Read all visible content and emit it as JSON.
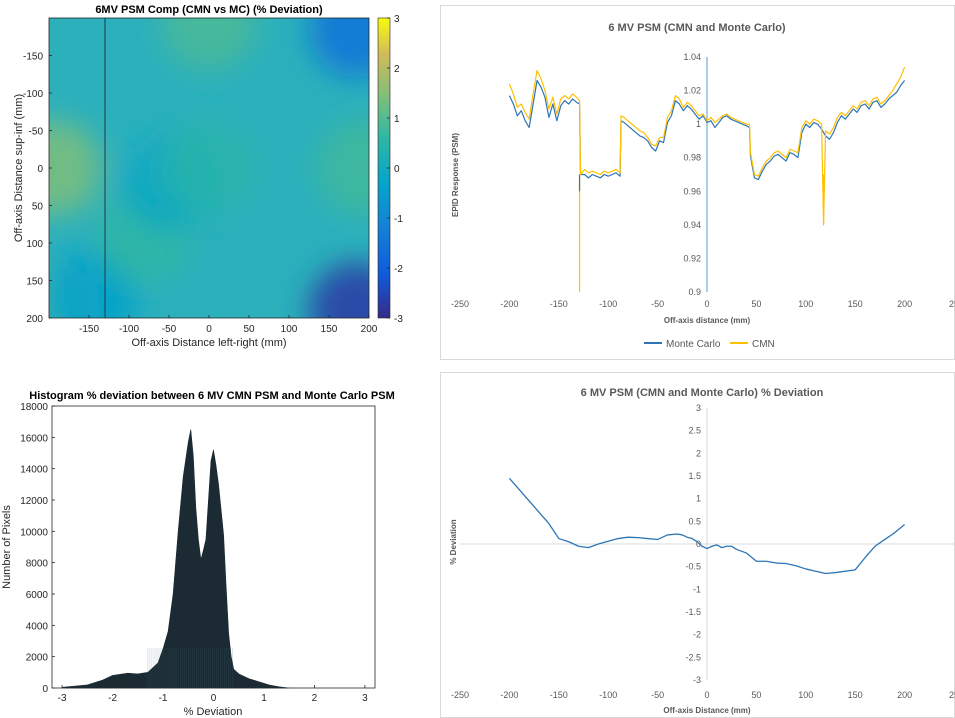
{
  "chart_data": [
    {
      "type": "heatmap",
      "title": "6MV PSM Comp (CMN vs MC) (% Deviation)",
      "xlabel": "Off-axis Distance left-right (mm)",
      "ylabel": "Off-axis Distance sup-inf (mm)",
      "xlim": [
        -200,
        200
      ],
      "ylim": [
        -200,
        200
      ],
      "x_ticks": [
        "-150",
        "-100",
        "-50",
        "0",
        "50",
        "100",
        "150",
        "200"
      ],
      "y_ticks": [
        "-150",
        "-100",
        "-50",
        "0",
        "50",
        "100",
        "150",
        "200"
      ],
      "colorbar": {
        "min": -3,
        "max": 3,
        "ticks": [
          "3",
          "2",
          "1",
          "0",
          "-1",
          "-2",
          "-3"
        ]
      },
      "hotspots": [
        {
          "x": -195,
          "y": 0,
          "value": 1.2
        },
        {
          "x": 195,
          "y": 0,
          "value": 0.6
        },
        {
          "x": 0,
          "y": -195,
          "value": 0.7
        },
        {
          "x": -195,
          "y": 195,
          "value": 0.6
        },
        {
          "x": -150,
          "y": 175,
          "value": -0.5
        },
        {
          "x": -80,
          "y": 90,
          "value": 0.4
        },
        {
          "x": 185,
          "y": -185,
          "value": -1.6
        },
        {
          "x": 185,
          "y": 190,
          "value": -2.7
        },
        {
          "x": -50,
          "y": 20,
          "value": -0.3
        },
        {
          "x": 0,
          "y": 0,
          "value": 0.3
        }
      ],
      "vertical_line_x": -130
    },
    {
      "type": "line",
      "title": "6 MV PSM (CMN and Monte Carlo)",
      "xlabel": "Off-axis distance (mm)",
      "ylabel": "EPID Response (PSM)",
      "xlim": [
        -250,
        250
      ],
      "ylim": [
        0.9,
        1.04
      ],
      "x_ticks": [
        "-250",
        "-200",
        "-150",
        "-100",
        "-50",
        "0",
        "50",
        "100",
        "150",
        "200",
        "25"
      ],
      "y_ticks": [
        "0.9",
        "0.92",
        "0.94",
        "0.96",
        "0.98",
        "1",
        "1.02",
        "1.04"
      ],
      "legend_position": "bottom",
      "series": [
        {
          "name": "Monte Carlo",
          "color": "#2e75b6",
          "x": [
            -200,
            -196,
            -192,
            -188,
            -184,
            -180,
            -176,
            -172,
            -168,
            -164,
            -160,
            -156,
            -152,
            -148,
            -144,
            -140,
            -136,
            -132,
            -129,
            -128,
            -124,
            -120,
            -116,
            -112,
            -108,
            -104,
            -100,
            -96,
            -92,
            -88,
            -87,
            -84,
            -80,
            -76,
            -72,
            -68,
            -64,
            -60,
            -56,
            -52,
            -48,
            -44,
            -40,
            -36,
            -32,
            -28,
            -24,
            -20,
            -16,
            -12,
            -8,
            -4,
            0,
            4,
            8,
            12,
            16,
            20,
            24,
            28,
            32,
            36,
            40,
            43,
            44,
            48,
            52,
            56,
            60,
            64,
            68,
            72,
            76,
            80,
            84,
            88,
            92,
            96,
            100,
            104,
            108,
            112,
            116,
            120,
            124,
            128,
            132,
            136,
            140,
            144,
            148,
            152,
            156,
            160,
            164,
            168,
            172,
            176,
            180,
            184,
            188,
            192,
            196,
            200
          ],
          "values": [
            1.017,
            1.012,
            1.005,
            1.008,
            1.002,
            0.998,
            1.012,
            1.026,
            1.022,
            1.016,
            1.004,
            1.012,
            1.002,
            1.011,
            1.014,
            1.012,
            1.015,
            1.013,
            1.012,
            0.97,
            0.97,
            0.968,
            0.97,
            0.969,
            0.968,
            0.97,
            0.969,
            0.97,
            0.971,
            0.969,
            1.002,
            1.001,
            0.999,
            0.997,
            0.995,
            0.993,
            0.992,
            0.99,
            0.986,
            0.984,
            0.99,
            0.989,
            1.001,
            1.005,
            1.014,
            1.012,
            1.008,
            1.011,
            1.009,
            1.006,
            1.003,
            1.005,
            1.001,
            1.002,
            0.998,
            1.001,
            1.004,
            1.005,
            1.003,
            1.002,
            1.001,
            1.0,
            0.999,
            0.998,
            0.981,
            0.968,
            0.967,
            0.972,
            0.976,
            0.978,
            0.981,
            0.982,
            0.98,
            0.978,
            0.983,
            0.982,
            0.98,
            0.995,
            1.0,
            0.998,
            1.001,
            1.0,
            0.997,
            0.993,
            0.991,
            0.995,
            1.001,
            1.005,
            1.003,
            1.006,
            1.009,
            1.007,
            1.011,
            1.012,
            1.009,
            1.013,
            1.014,
            1.01,
            1.012,
            1.015,
            1.017,
            1.019,
            1.023,
            1.026
          ]
        },
        {
          "name": "CMN",
          "color": "#ffc000",
          "x": [
            -200,
            -196,
            -192,
            -188,
            -184,
            -180,
            -176,
            -172,
            -168,
            -164,
            -160,
            -156,
            -152,
            -148,
            -144,
            -140,
            -136,
            -132,
            -129,
            -128,
            -124,
            -120,
            -116,
            -112,
            -108,
            -104,
            -100,
            -96,
            -92,
            -88,
            -87,
            -84,
            -80,
            -76,
            -72,
            -68,
            -64,
            -60,
            -56,
            -52,
            -48,
            -44,
            -40,
            -36,
            -32,
            -28,
            -24,
            -20,
            -16,
            -12,
            -8,
            -4,
            0,
            4,
            8,
            12,
            16,
            20,
            24,
            28,
            32,
            36,
            40,
            43,
            44,
            48,
            52,
            56,
            60,
            64,
            68,
            72,
            76,
            80,
            84,
            88,
            92,
            96,
            100,
            104,
            108,
            112,
            116,
            118,
            120,
            124,
            128,
            132,
            136,
            140,
            144,
            148,
            152,
            156,
            160,
            164,
            168,
            172,
            176,
            180,
            184,
            188,
            192,
            196,
            200
          ],
          "values": [
            1.024,
            1.018,
            1.01,
            1.012,
            1.007,
            1.003,
            1.018,
            1.032,
            1.027,
            1.02,
            1.009,
            1.016,
            1.006,
            1.015,
            1.017,
            1.015,
            1.018,
            1.016,
            1.014,
            0.97,
            0.973,
            0.971,
            0.972,
            0.971,
            0.97,
            0.972,
            0.971,
            0.972,
            0.973,
            0.971,
            1.005,
            1.004,
            1.002,
            1.0,
            0.998,
            0.996,
            0.995,
            0.992,
            0.988,
            0.987,
            0.992,
            0.992,
            1.004,
            1.008,
            1.017,
            1.015,
            1.01,
            1.013,
            1.011,
            1.008,
            1.005,
            1.006,
            1.002,
            1.004,
            1.001,
            1.003,
            1.005,
            1.006,
            1.004,
            1.003,
            1.002,
            1.001,
            1.0,
            1.0,
            0.983,
            0.97,
            0.969,
            0.974,
            0.978,
            0.98,
            0.983,
            0.984,
            0.982,
            0.98,
            0.985,
            0.984,
            0.983,
            0.998,
            1.002,
            1.0,
            1.003,
            1.002,
            1.0,
            0.94,
            0.996,
            0.994,
            0.998,
            1.004,
            1.007,
            1.005,
            1.008,
            1.011,
            1.009,
            1.013,
            1.014,
            1.011,
            1.015,
            1.016,
            1.012,
            1.014,
            1.017,
            1.02,
            1.024,
            1.028,
            1.034
          ]
        }
      ],
      "spikes": [
        {
          "series": "CMN",
          "x": -129,
          "min": 0.9
        },
        {
          "series": "Monte Carlo",
          "x": -129,
          "min": 0.96
        },
        {
          "series": "CMN",
          "x": 118,
          "min": 0.94
        }
      ]
    },
    {
      "type": "bar",
      "title": "Histogram % deviation between 6 MV CMN PSM and Monte Carlo PSM",
      "xlabel": "% Deviation",
      "ylabel": "Number of Pixels",
      "xlim": [
        -3.2,
        3.2
      ],
      "ylim": [
        0,
        18000
      ],
      "x_ticks": [
        "-3",
        "-2",
        "-1",
        "0",
        "1",
        "2",
        "3"
      ],
      "y_ticks": [
        "0",
        "2000",
        "4000",
        "6000",
        "8000",
        "10000",
        "12000",
        "14000",
        "16000",
        "18000"
      ],
      "color": "#1c2b33",
      "profile": {
        "x": [
          -3.0,
          -2.5,
          -2.2,
          -2.0,
          -1.7,
          -1.5,
          -1.3,
          -1.1,
          -1.0,
          -0.9,
          -0.8,
          -0.7,
          -0.6,
          -0.5,
          -0.45,
          -0.4,
          -0.35,
          -0.3,
          -0.25,
          -0.2,
          -0.15,
          -0.1,
          -0.05,
          0.0,
          0.05,
          0.1,
          0.2,
          0.25,
          0.3,
          0.35,
          0.4,
          0.5,
          0.7,
          0.9,
          1.1,
          1.3,
          1.5
        ],
        "values": [
          50,
          200,
          500,
          800,
          950,
          900,
          1000,
          1600,
          2500,
          3600,
          6000,
          10000,
          13500,
          15700,
          16500,
          14800,
          11500,
          9500,
          8200,
          8800,
          9500,
          12000,
          14500,
          15200,
          14200,
          13000,
          9800,
          6500,
          3500,
          2000,
          1200,
          900,
          600,
          400,
          200,
          80,
          0
        ]
      }
    },
    {
      "type": "line",
      "title": "6 MV PSM (CMN and Monte Carlo) % Deviation",
      "xlabel": "Off-axis Distance (mm)",
      "ylabel": "% Deviation",
      "xlim": [
        -250,
        250
      ],
      "ylim": [
        -3,
        3
      ],
      "x_ticks": [
        "-250",
        "-200",
        "-150",
        "-100",
        "-50",
        "0",
        "50",
        "100",
        "150",
        "200",
        "25"
      ],
      "y_ticks": [
        "3",
        "2.5",
        "2",
        "1.5",
        "1",
        "0.5",
        "0",
        "-0.5",
        "-1",
        "-1.5",
        "-2",
        "-2.5",
        "-3"
      ],
      "series": [
        {
          "color": "#2e75b6",
          "x": [
            -200,
            -180,
            -160,
            -150,
            -140,
            -130,
            -120,
            -110,
            -100,
            -90,
            -80,
            -70,
            -60,
            -50,
            -40,
            -30,
            -25,
            -20,
            -15,
            -10,
            -5,
            0,
            5,
            10,
            15,
            20,
            25,
            30,
            40,
            50,
            60,
            70,
            80,
            90,
            100,
            110,
            120,
            130,
            150,
            160,
            170,
            180,
            190,
            200
          ],
          "values": [
            1.45,
            0.95,
            0.45,
            0.12,
            0.05,
            -0.05,
            -0.08,
            0.0,
            0.06,
            0.12,
            0.15,
            0.14,
            0.12,
            0.1,
            0.2,
            0.22,
            0.2,
            0.15,
            0.12,
            0.05,
            -0.05,
            -0.1,
            -0.05,
            -0.02,
            -0.08,
            -0.05,
            -0.05,
            -0.12,
            -0.2,
            -0.38,
            -0.38,
            -0.42,
            -0.43,
            -0.48,
            -0.55,
            -0.6,
            -0.65,
            -0.63,
            -0.57,
            -0.3,
            -0.05,
            0.1,
            0.25,
            0.43
          ]
        }
      ]
    }
  ]
}
